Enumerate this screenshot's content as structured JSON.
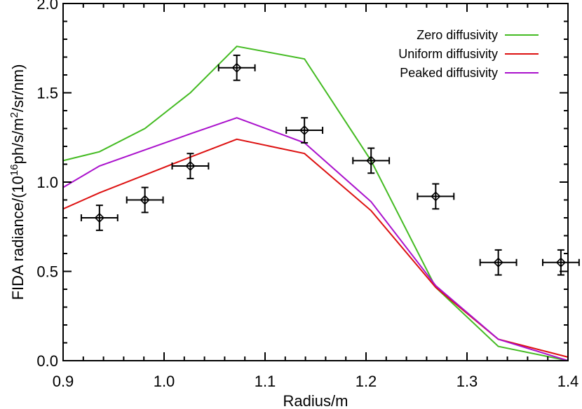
{
  "chart_data": {
    "type": "line",
    "title": "",
    "xlabel": "Radius/m",
    "ylabel": {
      "main": "FIDA radiance/(10",
      "exp16": "16",
      "mid": "ph/s/m",
      "exp2": "2",
      "end": "/sr/nm)"
    },
    "xlim": [
      0.9,
      1.4
    ],
    "ylim": [
      0.0,
      2.0
    ],
    "xticks": [
      0.9,
      1.0,
      1.1,
      1.2,
      1.3,
      1.4
    ],
    "xtick_labels": [
      "0.9",
      "1.0",
      "1.1",
      "1.2",
      "1.3",
      "1.4"
    ],
    "yticks": [
      0.0,
      0.5,
      1.0,
      1.5,
      2.0
    ],
    "ytick_labels": [
      "0.0",
      "0.5",
      "1.0",
      "1.5",
      "2.0"
    ],
    "legend_position": "top-right",
    "series": [
      {
        "name": "Zero diffusivity",
        "color": "#44bb22",
        "x": [
          0.9,
          0.936,
          0.981,
          1.026,
          1.072,
          1.139,
          1.205,
          1.269,
          1.331,
          1.4
        ],
        "y": [
          1.12,
          1.17,
          1.3,
          1.5,
          1.76,
          1.69,
          1.12,
          0.41,
          0.08,
          0.0
        ]
      },
      {
        "name": "Uniform diffusivity",
        "color": "#dd1111",
        "x": [
          0.9,
          0.936,
          0.981,
          1.026,
          1.072,
          1.139,
          1.205,
          1.269,
          1.331,
          1.4
        ],
        "y": [
          0.85,
          0.94,
          1.04,
          1.14,
          1.24,
          1.16,
          0.84,
          0.41,
          0.12,
          0.02
        ]
      },
      {
        "name": "Peaked diffusivity",
        "color": "#aa11cc",
        "x": [
          0.9,
          0.936,
          0.981,
          1.026,
          1.072,
          1.139,
          1.205,
          1.269,
          1.331,
          1.4
        ],
        "y": [
          0.97,
          1.09,
          1.18,
          1.27,
          1.36,
          1.22,
          0.89,
          0.42,
          0.12,
          0.0
        ]
      }
    ],
    "measurements": {
      "marker": "diamond",
      "color": "#000000",
      "x": [
        0.936,
        0.981,
        1.026,
        1.072,
        1.139,
        1.205,
        1.269,
        1.331,
        1.393
      ],
      "y": [
        0.8,
        0.9,
        1.09,
        1.64,
        1.29,
        1.12,
        0.92,
        0.55,
        0.55
      ],
      "xerr": [
        0.018,
        0.018,
        0.018,
        0.018,
        0.018,
        0.018,
        0.018,
        0.018,
        0.018
      ],
      "yerr": [
        0.07,
        0.07,
        0.07,
        0.07,
        0.07,
        0.07,
        0.07,
        0.07,
        0.07
      ]
    }
  }
}
